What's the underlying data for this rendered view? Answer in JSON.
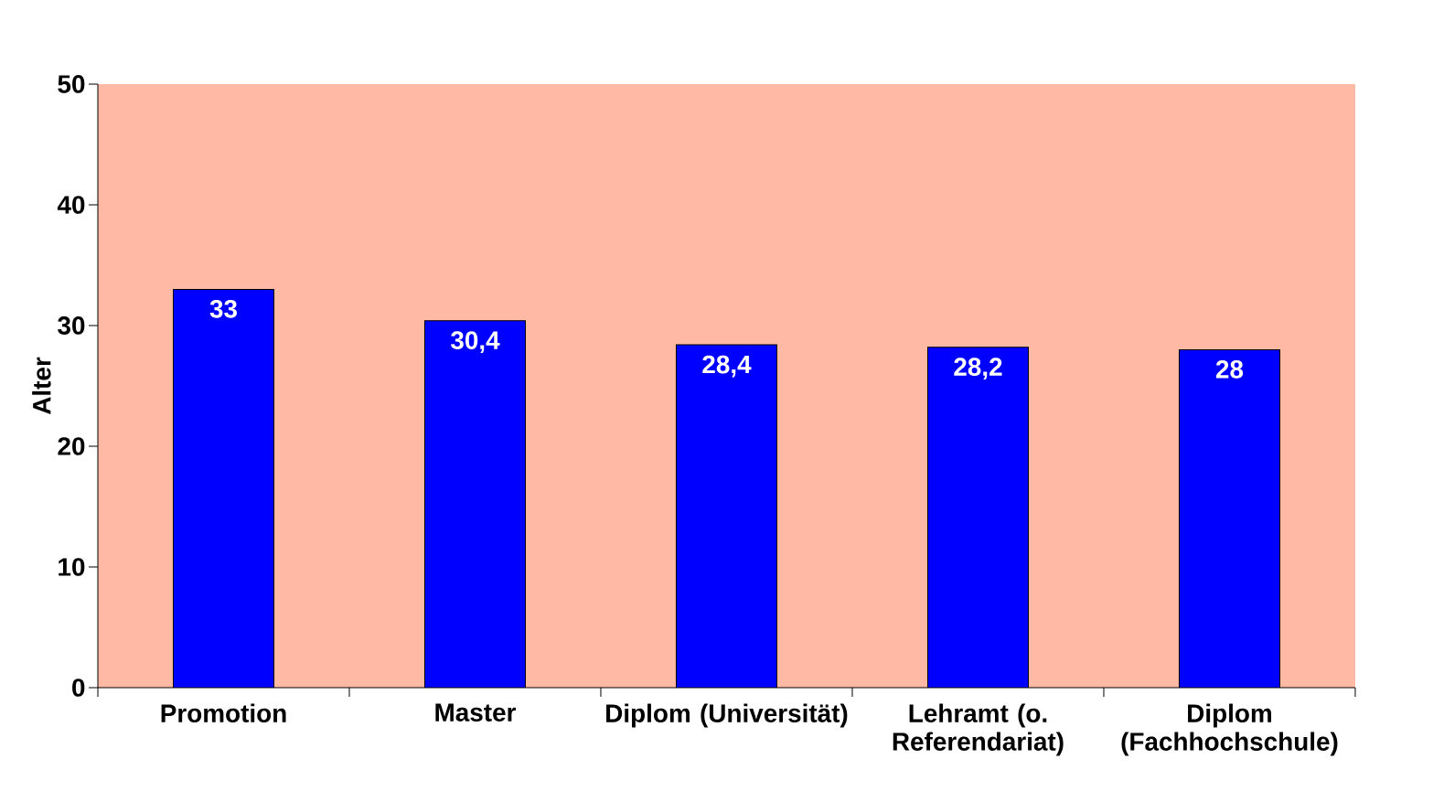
{
  "chart_data": {
    "type": "bar",
    "ylabel": "Alter",
    "categories": [
      "Promotion",
      "Master",
      "Diplom (Universität)",
      "Lehramt (o. Referendariat)",
      "Diplom (Fachhochschule)"
    ],
    "values": [
      33,
      30.4,
      28.4,
      28.2,
      28
    ],
    "color": "#0000ff",
    "value_labels": [
      "33",
      "30,4",
      "28,4",
      "28,2",
      "28"
    ],
    "ylim": [
      0,
      50
    ],
    "yticks": [
      0,
      10,
      20,
      30,
      40,
      50
    ]
  }
}
